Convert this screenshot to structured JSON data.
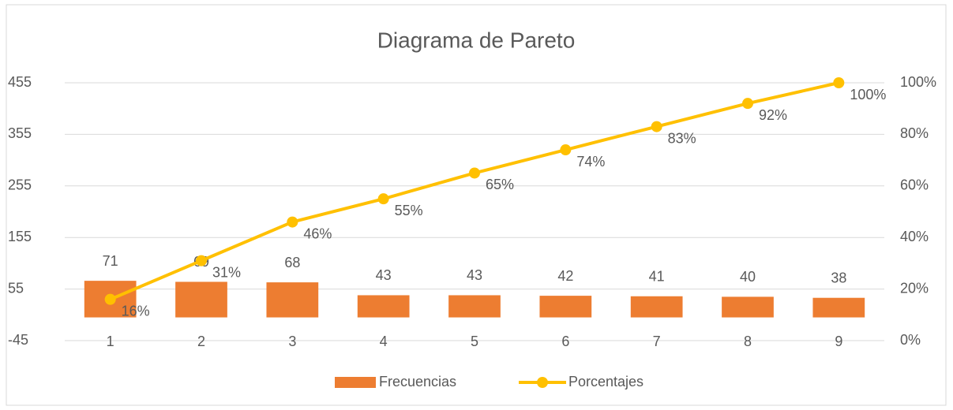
{
  "chart_data": {
    "type": "bar",
    "title": "Diagrama de Pareto",
    "categories": [
      "1",
      "2",
      "3",
      "4",
      "5",
      "6",
      "7",
      "8",
      "9"
    ],
    "series": [
      {
        "name": "Frecuencias",
        "type": "bar",
        "color": "#ed7d31",
        "values": [
          71,
          69,
          68,
          43,
          43,
          42,
          41,
          40,
          38
        ]
      },
      {
        "name": "Porcentajes",
        "type": "line",
        "axis": "y2",
        "color": "#ffc000",
        "values": [
          16,
          31,
          46,
          55,
          65,
          74,
          83,
          92,
          100
        ],
        "value_labels": [
          "16%",
          "31%",
          "46%",
          "55%",
          "65%",
          "74%",
          "83%",
          "92%",
          "100%"
        ]
      }
    ],
    "ylim": [
      -45,
      455
    ],
    "yticks": [
      -45,
      55,
      155,
      255,
      355,
      455
    ],
    "y2lim": [
      0,
      100
    ],
    "y2ticks": [
      {
        "value": 0,
        "label": "0%"
      },
      {
        "value": 20,
        "label": "20%"
      },
      {
        "value": 40,
        "label": "40%"
      },
      {
        "value": 60,
        "label": "60%"
      },
      {
        "value": 80,
        "label": "80%"
      },
      {
        "value": 100,
        "label": "100%"
      }
    ],
    "grid": true,
    "legend": "bottom"
  }
}
